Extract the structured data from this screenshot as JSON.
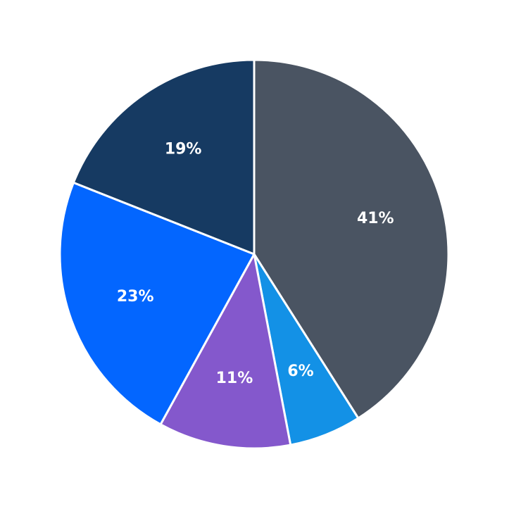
{
  "chart_data": {
    "type": "pie",
    "values": [
      41,
      6,
      11,
      23,
      19
    ],
    "value_labels": [
      "41%",
      "6%",
      "11%",
      "23%",
      "19%"
    ],
    "colors": [
      "#4a5462",
      "#1391e6",
      "#8458cc",
      "#0366ff",
      "#163a62"
    ]
  }
}
